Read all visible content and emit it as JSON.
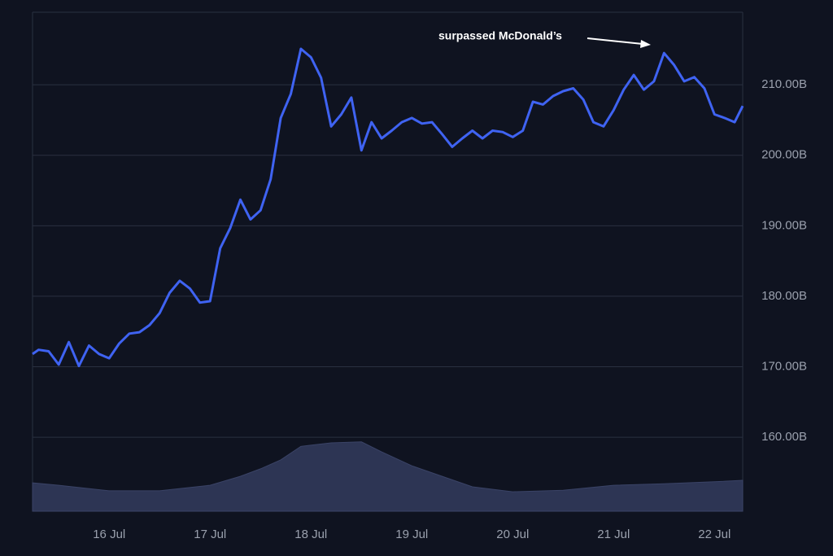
{
  "chart_data": {
    "type": "line",
    "annotation": "surpassed McDonald’s",
    "x": [
      15.24,
      15.3,
      15.4,
      15.5,
      15.6,
      15.7,
      15.8,
      15.9,
      16.0,
      16.1,
      16.2,
      16.3,
      16.4,
      16.5,
      16.6,
      16.7,
      16.8,
      16.9,
      17.0,
      17.1,
      17.2,
      17.3,
      17.4,
      17.5,
      17.6,
      17.7,
      17.8,
      17.9,
      18.0,
      18.1,
      18.2,
      18.3,
      18.4,
      18.5,
      18.6,
      18.7,
      18.8,
      18.9,
      19.0,
      19.1,
      19.2,
      19.3,
      19.4,
      19.5,
      19.6,
      19.7,
      19.8,
      19.9,
      20.0,
      20.1,
      20.2,
      20.3,
      20.4,
      20.5,
      20.6,
      20.7,
      20.8,
      20.9,
      21.0,
      21.1,
      21.2,
      21.3,
      21.4,
      21.5,
      21.6,
      21.7,
      21.8,
      21.9,
      22.0,
      22.1,
      22.2,
      22.28
    ],
    "series": [
      {
        "color": "#3f63f2",
        "values": [
          171.8,
          172.4,
          172.2,
          170.3,
          173.5,
          170.1,
          173,
          171.8,
          171.2,
          173.3,
          174.7,
          174.9,
          175.9,
          177.6,
          180.5,
          182.2,
          181.1,
          179.1,
          179.3,
          186.8,
          189.7,
          193.7,
          190.9,
          192.2,
          196.6,
          205.3,
          208.7,
          215.1,
          213.9,
          211,
          204.1,
          205.8,
          208.2,
          200.7,
          204.7,
          202.4,
          203.5,
          204.7,
          205.3,
          204.5,
          204.7,
          203,
          201.2,
          202.4,
          203.5,
          202.4,
          203.5,
          203.3,
          202.6,
          203.5,
          207.6,
          207.2,
          208.4,
          209.1,
          209.5,
          207.9,
          204.7,
          204.1,
          206.4,
          209.3,
          211.4,
          209.3,
          210.5,
          214.5,
          212.8,
          210.5,
          211.1,
          209.5,
          205.8,
          205.3,
          204.7,
          207
        ]
      },
      {
        "color": "#2d3554",
        "axis": "y2",
        "x": [
          15.24,
          15.5,
          16,
          16.5,
          17,
          17.3,
          17.5,
          17.7,
          17.9,
          18.2,
          18.5,
          18.7,
          19,
          19.3,
          19.6,
          20,
          20.5,
          21,
          21.5,
          22,
          22.28
        ],
        "values": [
          5.7,
          5.2,
          4.1,
          4.1,
          5.2,
          7,
          8.5,
          10.3,
          13,
          13.7,
          13.9,
          11.9,
          9.1,
          7,
          4.9,
          3.9,
          4.2,
          5.2,
          5.5,
          5.9,
          6.2
        ]
      }
    ],
    "xlim": [
      15.24,
      22.28
    ],
    "xticks": [
      {
        "value": 16,
        "label": "16 Jul"
      },
      {
        "value": 17,
        "label": "17 Jul"
      },
      {
        "value": 18,
        "label": "18 Jul"
      },
      {
        "value": 19,
        "label": "19 Jul"
      },
      {
        "value": 20,
        "label": "20 Jul"
      },
      {
        "value": 21,
        "label": "21 Jul"
      },
      {
        "value": 22,
        "label": "22 Jul"
      }
    ],
    "ylim": [
      149.5,
      220.3
    ],
    "yticks": [
      {
        "value": 160,
        "label": "160.00B"
      },
      {
        "value": 170,
        "label": "170.00B"
      },
      {
        "value": 180,
        "label": "180.00B"
      },
      {
        "value": 190,
        "label": "190.00B"
      },
      {
        "value": 200,
        "label": "200.00B"
      },
      {
        "value": 210,
        "label": "210.00B"
      }
    ],
    "y2lim": [
      0,
      100
    ],
    "grid": true
  }
}
